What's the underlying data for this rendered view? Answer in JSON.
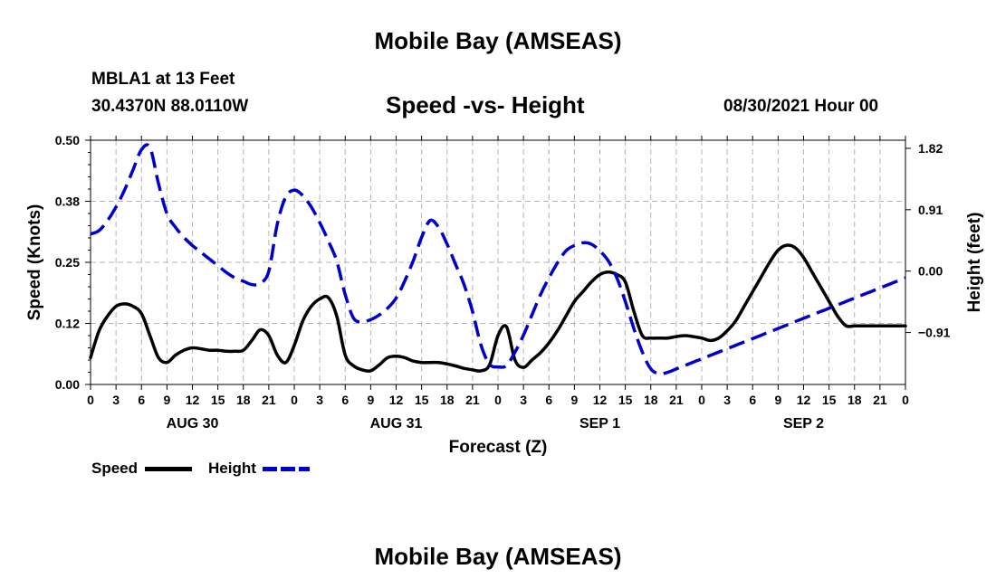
{
  "header": {
    "title_top": "Mobile Bay (AMSEAS)",
    "title_bottom": "Mobile Bay (AMSEAS)",
    "station": "MBLA1 at 13 Feet",
    "coords": "30.4370N  88.0110W",
    "chart_title": "Speed -vs- Height",
    "datetime": "08/30/2021 Hour 00"
  },
  "legend": {
    "speed_label": "Speed",
    "height_label": "Height"
  },
  "colors": {
    "speed": "#000000",
    "height": "#0000cc",
    "grid": "#b4b4b4"
  },
  "chart_data": {
    "type": "line",
    "title": "Speed -vs- Height",
    "xlabel": "Forecast (Z)",
    "ylabel": "Speed (Knots)",
    "y2label": "Height (feet)",
    "xlim": [
      0,
      96
    ],
    "ylim": [
      0,
      0.5
    ],
    "y2lim": [
      -1.68,
      1.94
    ],
    "y_ticks": [
      0.0,
      0.125,
      0.25,
      0.375,
      0.5
    ],
    "y_tick_labels": [
      "0.00",
      "0.12",
      "0.25",
      "0.38",
      "0.50"
    ],
    "y2_ticks": [
      -0.91,
      0.0,
      0.91,
      1.82
    ],
    "y2_tick_labels": [
      "−0.91",
      "0.00",
      "0.91",
      "1.82"
    ],
    "x_ticks": [
      0,
      3,
      6,
      9,
      12,
      15,
      18,
      21,
      24,
      27,
      30,
      33,
      36,
      39,
      42,
      45,
      48,
      51,
      54,
      57,
      60,
      63,
      66,
      69,
      72,
      75,
      78,
      81,
      84,
      87,
      90,
      93,
      96
    ],
    "x_tick_labels": [
      "0",
      "3",
      "6",
      "9",
      "12",
      "15",
      "18",
      "21",
      "0",
      "3",
      "6",
      "9",
      "12",
      "15",
      "18",
      "21",
      "0",
      "3",
      "6",
      "9",
      "12",
      "15",
      "18",
      "21",
      "0",
      "3",
      "6",
      "9",
      "12",
      "15",
      "18",
      "21",
      "0"
    ],
    "date_labels": [
      {
        "hour": 12,
        "label": "AUG 30"
      },
      {
        "hour": 36,
        "label": "AUG 31"
      },
      {
        "hour": 60,
        "label": "SEP 1"
      },
      {
        "hour": 84,
        "label": "SEP 2"
      }
    ],
    "grid": true,
    "series": [
      {
        "name": "Speed",
        "axis": "left",
        "style": "solid",
        "x": [
          0,
          1,
          2,
          3,
          4,
          5,
          6,
          7,
          8,
          9,
          10,
          11,
          12,
          13,
          14,
          15,
          16,
          17,
          18,
          19,
          20,
          21,
          22,
          23,
          24,
          25,
          26,
          27,
          28,
          29,
          30,
          31,
          32,
          33,
          34,
          35,
          36,
          37,
          38,
          39,
          40,
          41,
          42,
          43,
          44,
          45,
          46,
          47,
          48,
          49,
          50,
          51,
          52,
          53,
          54,
          55,
          56,
          57,
          58,
          59,
          60,
          61,
          62,
          63,
          64,
          65,
          66,
          67,
          68,
          69,
          70,
          71,
          72,
          73,
          74,
          75,
          76,
          77,
          78,
          79,
          80,
          81,
          82,
          83,
          84,
          85,
          86,
          87,
          88,
          89,
          90,
          91,
          92,
          93,
          94,
          95,
          96
        ],
        "values": [
          0.055,
          0.11,
          0.14,
          0.16,
          0.165,
          0.16,
          0.145,
          0.1,
          0.055,
          0.045,
          0.06,
          0.07,
          0.075,
          0.073,
          0.07,
          0.07,
          0.068,
          0.068,
          0.07,
          0.09,
          0.112,
          0.1,
          0.06,
          0.045,
          0.08,
          0.13,
          0.16,
          0.175,
          0.178,
          0.14,
          0.06,
          0.038,
          0.03,
          0.028,
          0.04,
          0.055,
          0.058,
          0.055,
          0.048,
          0.045,
          0.045,
          0.045,
          0.042,
          0.038,
          0.033,
          0.03,
          0.028,
          0.04,
          0.1,
          0.118,
          0.05,
          0.035,
          0.05,
          0.065,
          0.085,
          0.11,
          0.14,
          0.17,
          0.19,
          0.21,
          0.225,
          0.23,
          0.225,
          0.21,
          0.15,
          0.1,
          0.095,
          0.095,
          0.095,
          0.098,
          0.1,
          0.098,
          0.095,
          0.09,
          0.095,
          0.11,
          0.13,
          0.16,
          0.19,
          0.22,
          0.25,
          0.275,
          0.285,
          0.28,
          0.26,
          0.23,
          0.2,
          0.17,
          0.14,
          0.12,
          0.12,
          0.12,
          0.12,
          0.12,
          0.12,
          0.12,
          0.12
        ]
      },
      {
        "name": "Height",
        "axis": "right",
        "style": "dashed",
        "x": [
          0,
          1,
          2,
          3,
          4,
          5,
          6,
          7,
          8,
          9,
          10,
          11,
          12,
          13,
          14,
          15,
          16,
          17,
          18,
          19,
          20,
          21,
          22,
          23,
          24,
          25,
          26,
          27,
          28,
          29,
          30,
          31,
          32,
          33,
          34,
          35,
          36,
          37,
          38,
          39,
          40,
          41,
          42,
          43,
          44,
          45,
          46,
          47,
          48,
          49,
          50,
          51,
          52,
          53,
          54,
          55,
          56,
          57,
          58,
          59,
          60,
          61,
          62,
          63,
          64,
          65,
          66,
          67,
          68,
          69,
          70,
          71,
          72,
          73,
          74,
          75,
          76,
          77,
          78,
          79,
          80,
          81,
          82,
          83,
          84,
          85,
          86,
          87,
          88,
          89,
          90,
          91,
          92,
          93,
          94,
          95,
          96
        ],
        "values": [
          0.55,
          0.6,
          0.75,
          0.95,
          1.2,
          1.5,
          1.8,
          1.83,
          1.3,
          0.85,
          0.65,
          0.5,
          0.38,
          0.28,
          0.18,
          0.08,
          -0.02,
          -0.1,
          -0.15,
          -0.2,
          -0.18,
          0.0,
          0.7,
          1.1,
          1.2,
          1.12,
          0.95,
          0.72,
          0.45,
          0.15,
          -0.35,
          -0.7,
          -0.75,
          -0.72,
          -0.65,
          -0.55,
          -0.4,
          -0.15,
          0.15,
          0.5,
          0.75,
          0.65,
          0.4,
          0.1,
          -0.2,
          -0.6,
          -1.1,
          -1.38,
          -1.42,
          -1.4,
          -1.2,
          -0.95,
          -0.65,
          -0.35,
          -0.1,
          0.12,
          0.3,
          0.38,
          0.42,
          0.4,
          0.3,
          0.15,
          -0.1,
          -0.45,
          -0.85,
          -1.2,
          -1.45,
          -1.52,
          -1.5,
          -1.45,
          -1.4,
          -1.35,
          -1.3,
          -1.25,
          -1.2,
          -1.15,
          -1.1,
          -1.05,
          -1.0,
          -0.95,
          -0.9,
          -0.85,
          -0.8,
          -0.75,
          -0.7,
          -0.65,
          -0.6,
          -0.55,
          -0.5,
          -0.45,
          -0.4,
          -0.35,
          -0.3,
          -0.25,
          -0.2,
          -0.15,
          -0.1
        ]
      }
    ]
  }
}
